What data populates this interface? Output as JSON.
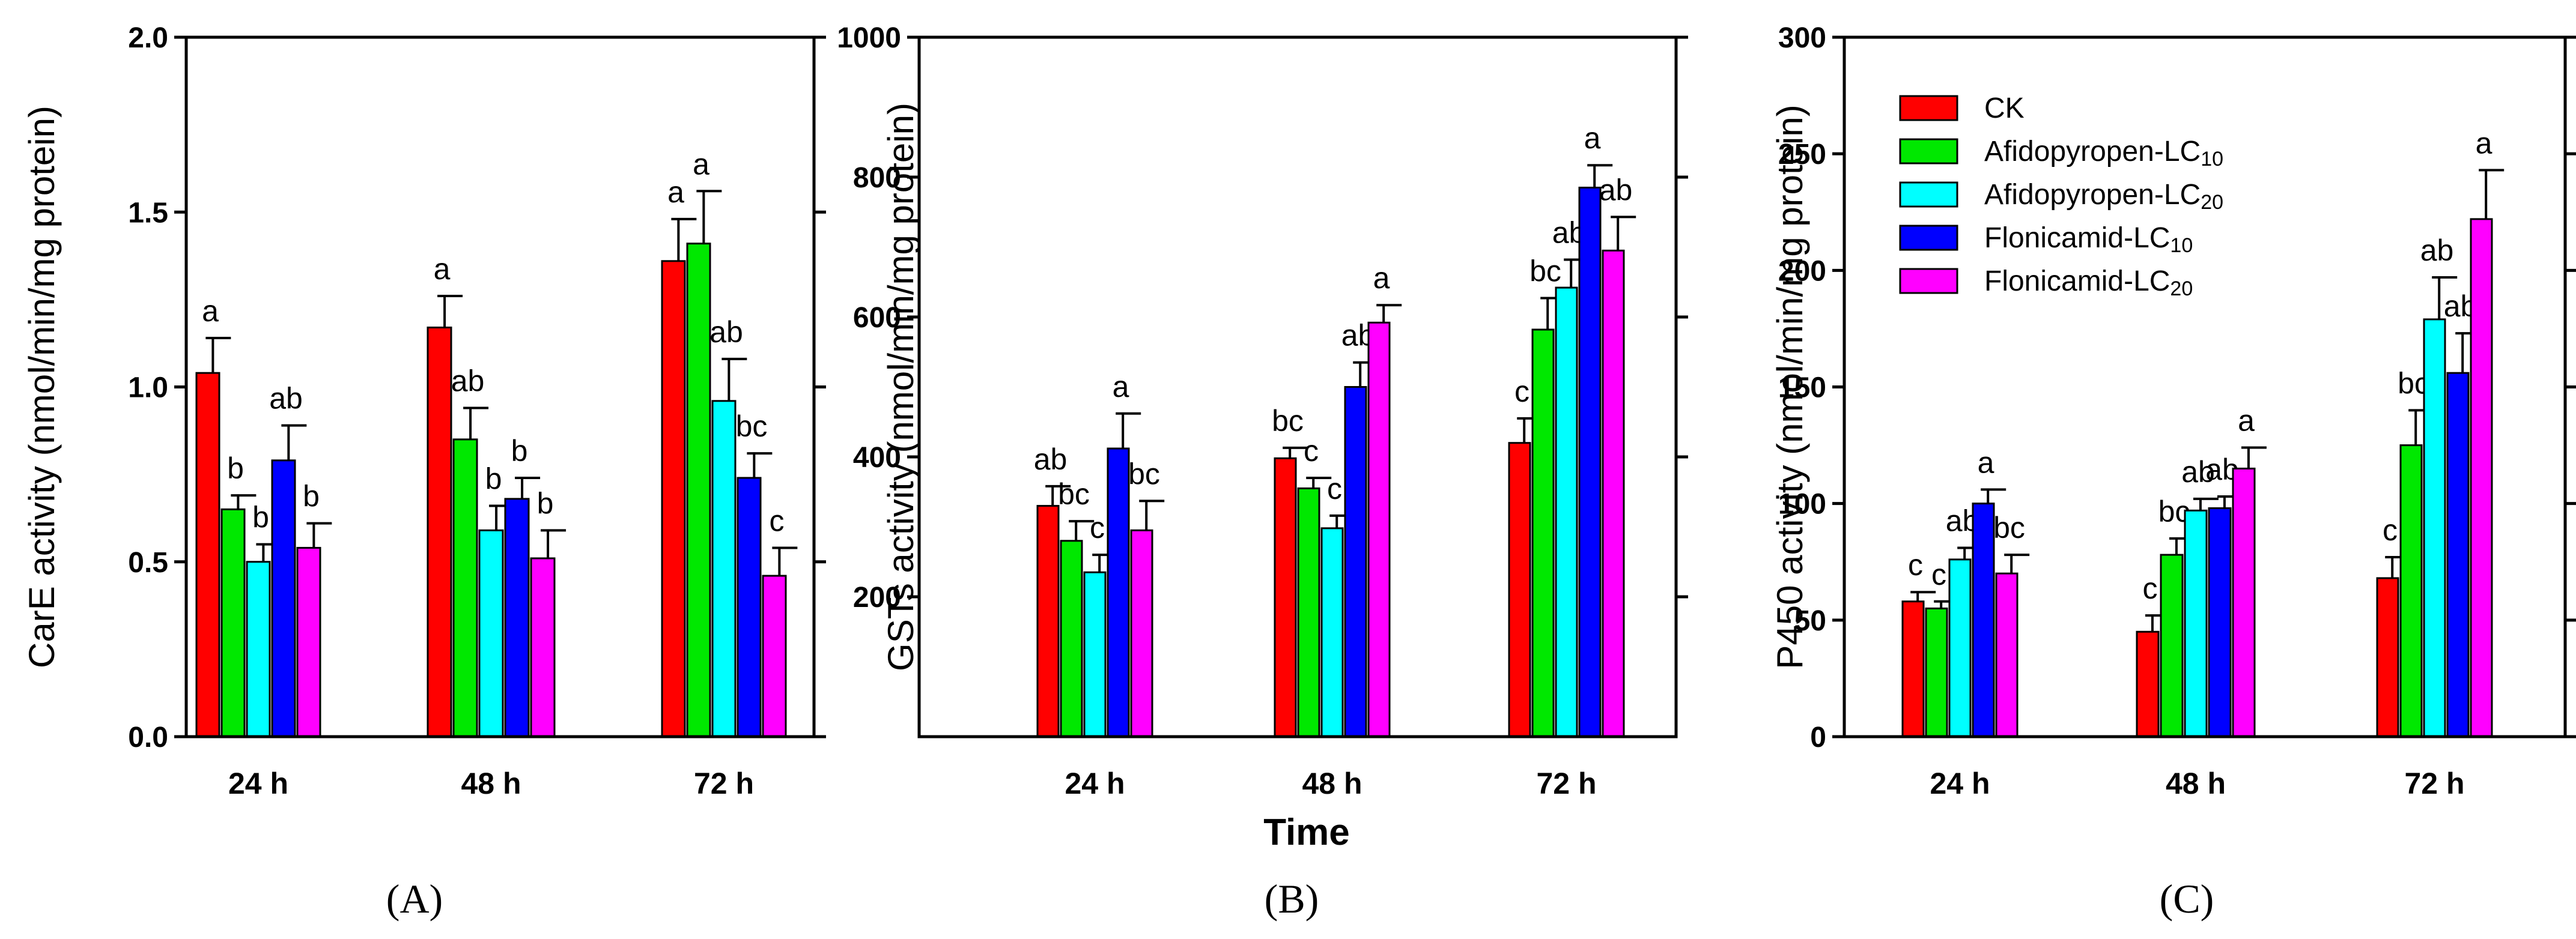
{
  "figure": {
    "x_title": "Time",
    "legend": [
      {
        "key": "ck",
        "text": "CK",
        "sub": ""
      },
      {
        "key": "afi10",
        "text": "Afidopyropen-LC",
        "sub": "10"
      },
      {
        "key": "afi20",
        "text": "Afidopyropen-LC",
        "sub": "20"
      },
      {
        "key": "flo10",
        "text": "Flonicamid-LC",
        "sub": "10"
      },
      {
        "key": "flo20",
        "text": "Flonicamid-LC",
        "sub": "20"
      }
    ],
    "colors": {
      "ck": "#ff0000",
      "afi10": "#00e800",
      "afi20": "#00ffff",
      "flo10": "#0000ff",
      "flo20": "#ff00ff"
    }
  },
  "chart_data": [
    {
      "type": "bar",
      "panel": "(A)",
      "ylabel": "CarE activity (nmol/min/mg protein)",
      "ylim": [
        0,
        2.0
      ],
      "yticks": [
        "0.0",
        "0.5",
        "1.0",
        "1.5",
        "2.0"
      ],
      "categories": [
        "24 h",
        "48 h",
        "72 h"
      ],
      "series": [
        {
          "name": "CK",
          "values": [
            1.04,
            1.17,
            1.36
          ],
          "errors": [
            0.1,
            0.09,
            0.12
          ],
          "letters": [
            "a",
            "a",
            "a"
          ]
        },
        {
          "name": "Afidopyropen-LC10",
          "values": [
            0.65,
            0.85,
            1.41
          ],
          "errors": [
            0.04,
            0.09,
            0.15
          ],
          "letters": [
            "b",
            "ab",
            "a"
          ]
        },
        {
          "name": "Afidopyropen-LC20",
          "values": [
            0.5,
            0.59,
            0.96
          ],
          "errors": [
            0.05,
            0.07,
            0.12
          ],
          "letters": [
            "b",
            "b",
            "ab"
          ]
        },
        {
          "name": "Flonicamid-LC10",
          "values": [
            0.79,
            0.68,
            0.74
          ],
          "errors": [
            0.1,
            0.06,
            0.07
          ],
          "letters": [
            "ab",
            "b",
            "bc"
          ]
        },
        {
          "name": "Flonicamid-LC20",
          "values": [
            0.54,
            0.51,
            0.46
          ],
          "errors": [
            0.07,
            0.08,
            0.08
          ],
          "letters": [
            "b",
            "b",
            "c"
          ]
        }
      ]
    },
    {
      "type": "bar",
      "panel": "(B)",
      "ylabel": "GSTs activity (nmol/min/mg protein)",
      "ylim": [
        0,
        1000
      ],
      "yticks": [
        "200",
        "400",
        "600",
        "800",
        "1000"
      ],
      "categories": [
        "24 h",
        "48 h",
        "72 h"
      ],
      "series": [
        {
          "name": "CK",
          "values": [
            330,
            398,
            420
          ],
          "errors": [
            28,
            15,
            35
          ],
          "letters": [
            "ab",
            "bc",
            "c"
          ]
        },
        {
          "name": "Afidopyropen-LC10",
          "values": [
            280,
            355,
            582
          ],
          "errors": [
            28,
            15,
            45
          ],
          "letters": [
            "bc",
            "c",
            "bc"
          ]
        },
        {
          "name": "Afidopyropen-LC20",
          "values": [
            235,
            298,
            642
          ],
          "errors": [
            25,
            18,
            40
          ],
          "letters": [
            "c",
            "c",
            "ab"
          ]
        },
        {
          "name": "Flonicamid-LC10",
          "values": [
            412,
            500,
            785
          ],
          "errors": [
            50,
            35,
            32
          ],
          "letters": [
            "a",
            "ab",
            "a"
          ]
        },
        {
          "name": "Flonicamid-LC20",
          "values": [
            295,
            592,
            695
          ],
          "errors": [
            42,
            25,
            48
          ],
          "letters": [
            "bc",
            "a",
            "ab"
          ]
        }
      ]
    },
    {
      "type": "bar",
      "panel": "(C)",
      "ylabel": "P450 activity (nmol/min/mg protein)",
      "ylim": [
        0,
        300
      ],
      "yticks": [
        "0",
        "50",
        "100",
        "150",
        "200",
        "250",
        "300"
      ],
      "categories": [
        "24 h",
        "48 h",
        "72 h"
      ],
      "series": [
        {
          "name": "CK",
          "values": [
            58,
            45,
            68
          ],
          "errors": [
            4,
            7,
            9
          ],
          "letters": [
            "c",
            "c",
            "c"
          ]
        },
        {
          "name": "Afidopyropen-LC10",
          "values": [
            55,
            78,
            125
          ],
          "errors": [
            3,
            7,
            15
          ],
          "letters": [
            "c",
            "bc",
            "bc"
          ]
        },
        {
          "name": "Afidopyropen-LC20",
          "values": [
            76,
            97,
            179
          ],
          "errors": [
            5,
            5,
            18
          ],
          "letters": [
            "ab",
            "ab",
            "ab"
          ]
        },
        {
          "name": "Flonicamid-LC10",
          "values": [
            100,
            98,
            156
          ],
          "errors": [
            6,
            5,
            17
          ],
          "letters": [
            "a",
            "ab",
            "ab"
          ]
        },
        {
          "name": "Flonicamid-LC20",
          "values": [
            70,
            115,
            222
          ],
          "errors": [
            8,
            9,
            21
          ],
          "letters": [
            "bc",
            "a",
            "a"
          ]
        }
      ]
    }
  ]
}
